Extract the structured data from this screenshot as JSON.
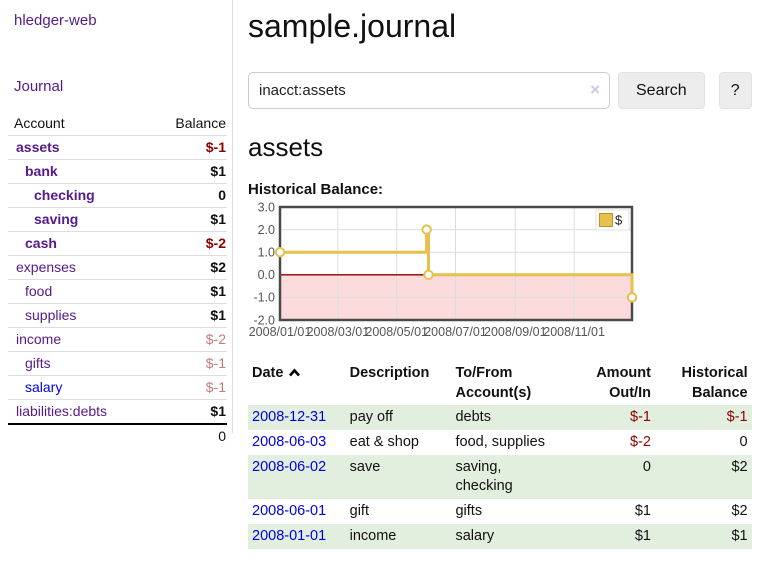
{
  "colors": {
    "link_purple": "#551a8b",
    "link_blue": "#0000dd",
    "negative_strong": "#8b0000",
    "negative_soft": "#c47a7a",
    "row_green": "#e2efdf",
    "chart_gold": "#e8c04d",
    "chart_negative_fill": "#fbdbdb",
    "chart_zero_line": "#8b0000"
  },
  "app": {
    "title": "hledger-web"
  },
  "sidebar": {
    "journal_link": "Journal",
    "accounts": {
      "header_account": "Account",
      "header_balance": "Balance",
      "rows": [
        {
          "account": "assets",
          "balance": "$-1"
        },
        {
          "account": "bank",
          "balance": "$1"
        },
        {
          "account": "checking",
          "balance": "0"
        },
        {
          "account": "saving",
          "balance": "$1"
        },
        {
          "account": "cash",
          "balance": "$-2"
        },
        {
          "account": "expenses",
          "balance": "$2"
        },
        {
          "account": "food",
          "balance": "$1"
        },
        {
          "account": "supplies",
          "balance": "$1"
        },
        {
          "account": "income",
          "balance": "$-2"
        },
        {
          "account": "gifts",
          "balance": "$-1"
        },
        {
          "account": "salary",
          "balance": "$-1"
        },
        {
          "account": "liabilities:debts",
          "balance": "$1"
        }
      ],
      "total": "0"
    }
  },
  "main": {
    "title": "sample.journal",
    "search": {
      "value": "inacct:assets",
      "clear_icon": "×",
      "button_label": "Search",
      "help_label": "?"
    },
    "account_heading": "assets",
    "chart_label": "Historical Balance:"
  },
  "chart_data": {
    "type": "step-line",
    "title": "Historical Balance",
    "legend": {
      "label": "$",
      "position": "top-right"
    },
    "xlim": [
      "2008-01-01",
      "2008-12-31"
    ],
    "ylim": [
      -2,
      3
    ],
    "grid": true,
    "negative_region_shaded": true,
    "y_ticks": [
      {
        "value": 3,
        "label": "3.0"
      },
      {
        "value": 2,
        "label": "2.0"
      },
      {
        "value": 1,
        "label": "1.0"
      },
      {
        "value": 0,
        "label": "0.0"
      },
      {
        "value": -1,
        "label": "-1.0"
      },
      {
        "value": -2,
        "label": "-2.0"
      }
    ],
    "x_ticks": [
      {
        "date": "2008-01-01",
        "label": "2008/01/01"
      },
      {
        "date": "2008-03-01",
        "label": "2008/03/01"
      },
      {
        "date": "2008-05-01",
        "label": "2008/05/01"
      },
      {
        "date": "2008-07-01",
        "label": "2008/07/01"
      },
      {
        "date": "2008-09-01",
        "label": "2008/09/01"
      },
      {
        "date": "2008-11-01",
        "label": "2008/11/01"
      }
    ],
    "series": [
      {
        "name": "$",
        "points": [
          {
            "date": "2008-01-01",
            "value": 1
          },
          {
            "date": "2008-06-01",
            "value": 2
          },
          {
            "date": "2008-06-03",
            "value": 0
          },
          {
            "date": "2008-12-31",
            "value": -1
          }
        ]
      }
    ]
  },
  "register": {
    "headers": {
      "date": "Date",
      "description": "Description",
      "accounts": "To/From Account(s)",
      "amount": "Amount Out/In",
      "balance": "Historical Balance"
    },
    "rows": [
      {
        "date": "2008-12-31",
        "description": "pay off",
        "accounts": "debts",
        "amount": "$-1",
        "balance": "$-1"
      },
      {
        "date": "2008-06-03",
        "description": "eat & shop",
        "accounts": "food, supplies",
        "amount": "$-2",
        "balance": "0"
      },
      {
        "date": "2008-06-02",
        "description": "save",
        "accounts": "saving, checking",
        "amount": "0",
        "balance": "$2"
      },
      {
        "date": "2008-06-01",
        "description": "gift",
        "accounts": "gifts",
        "amount": "$1",
        "balance": "$2"
      },
      {
        "date": "2008-01-01",
        "description": "income",
        "accounts": "salary",
        "amount": "$1",
        "balance": "$1"
      }
    ]
  }
}
